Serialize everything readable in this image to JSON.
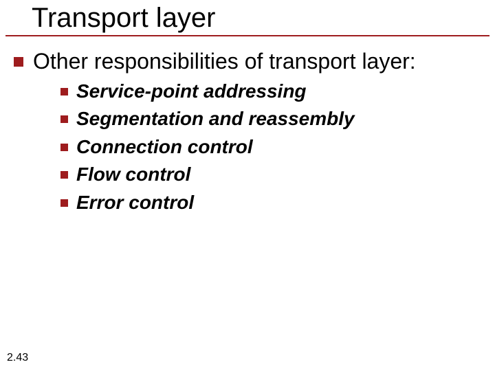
{
  "colors": {
    "accent": "#9e1c1e",
    "text": "#000000",
    "background": "#ffffff"
  },
  "typography": {
    "title_fontsize": 40,
    "top_fontsize": 32,
    "sub_fontsize": 28,
    "footer_fontsize": 16,
    "sub_style": "italic",
    "sub_weight": "bold",
    "font_family": "Verdana"
  },
  "title": "Transport layer",
  "top_item": "Other responsibilities of transport layer:",
  "sub_items": [
    "Service-point addressing",
    "Segmentation and reassembly",
    "Connection control",
    "Flow control",
    "Error control"
  ],
  "footer": "2.43"
}
